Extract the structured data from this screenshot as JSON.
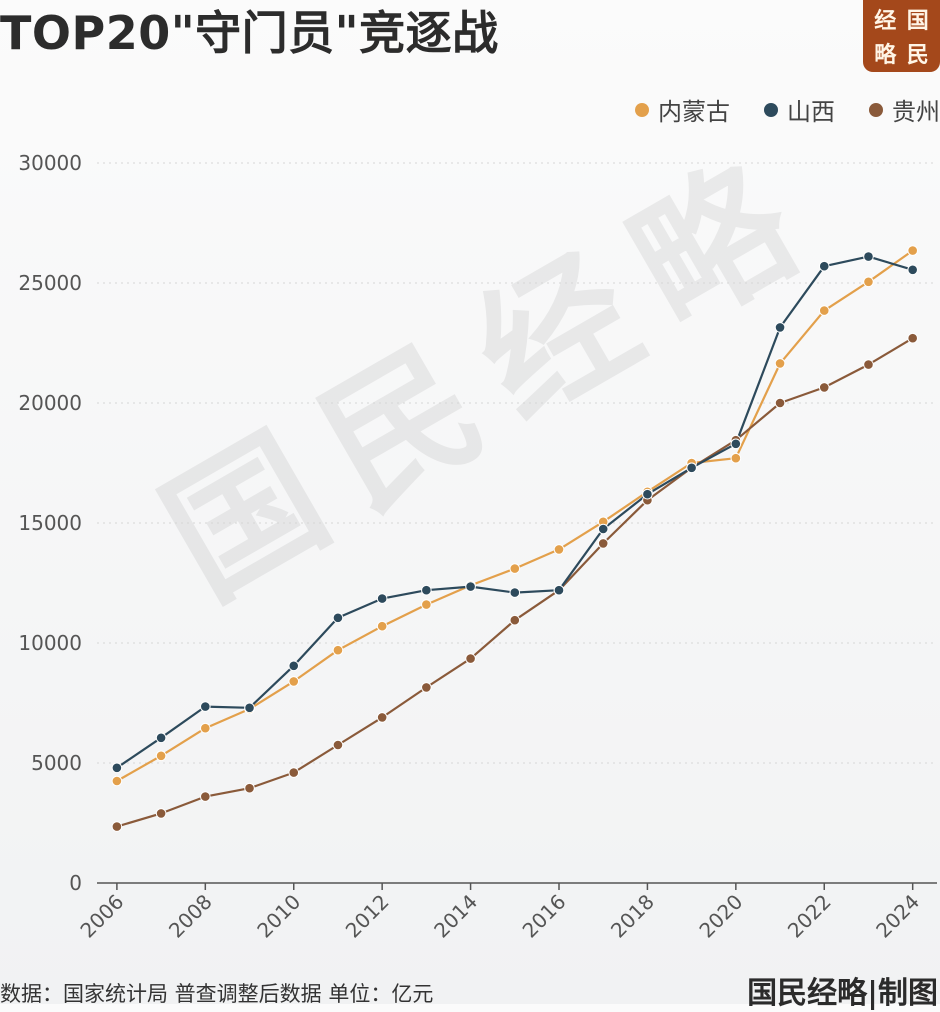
{
  "title": "TOP20\"守门员\"竞逐战",
  "seal": {
    "chars": [
      "经",
      "国",
      "略",
      "民"
    ]
  },
  "watermark": "国民经略",
  "footer": {
    "source": "数据：国家统计局 普查调整后数据  单位：亿元",
    "credit": "国民经略|制图"
  },
  "colors": {
    "内蒙古": "#e3a04b",
    "山西": "#2d4a5c",
    "贵州": "#8a5a3a"
  },
  "chart_data": {
    "type": "line",
    "title": "TOP20\"守门员\"竞逐战",
    "xlabel": "",
    "ylabel": "",
    "unit": "亿元",
    "ylim": [
      0,
      30000
    ],
    "yticks": [
      0,
      5000,
      10000,
      15000,
      20000,
      25000,
      30000
    ],
    "xticks": [
      2006,
      2008,
      2010,
      2012,
      2014,
      2016,
      2018,
      2020,
      2022,
      2024
    ],
    "grid": true,
    "legend_position": "top-right",
    "x": [
      2006,
      2007,
      2008,
      2009,
      2010,
      2011,
      2012,
      2013,
      2014,
      2015,
      2016,
      2017,
      2018,
      2019,
      2020,
      2021,
      2022,
      2023,
      2024
    ],
    "series": [
      {
        "name": "内蒙古",
        "values": [
          4250,
          5300,
          6450,
          7250,
          8400,
          9700,
          10700,
          11600,
          12400,
          13100,
          13900,
          15050,
          16300,
          17500,
          17700,
          21650,
          23850,
          25050,
          26350
        ]
      },
      {
        "name": "山西",
        "values": [
          4800,
          6050,
          7350,
          7300,
          9050,
          11050,
          11850,
          12200,
          12350,
          12100,
          12200,
          14750,
          16200,
          17300,
          18300,
          23150,
          25700,
          26100,
          25550
        ]
      },
      {
        "name": "贵州",
        "values": [
          2350,
          2900,
          3600,
          3950,
          4600,
          5750,
          6900,
          8150,
          9350,
          10950,
          12200,
          14150,
          15950,
          17300,
          18450,
          20000,
          20650,
          21600,
          22700
        ]
      }
    ]
  }
}
